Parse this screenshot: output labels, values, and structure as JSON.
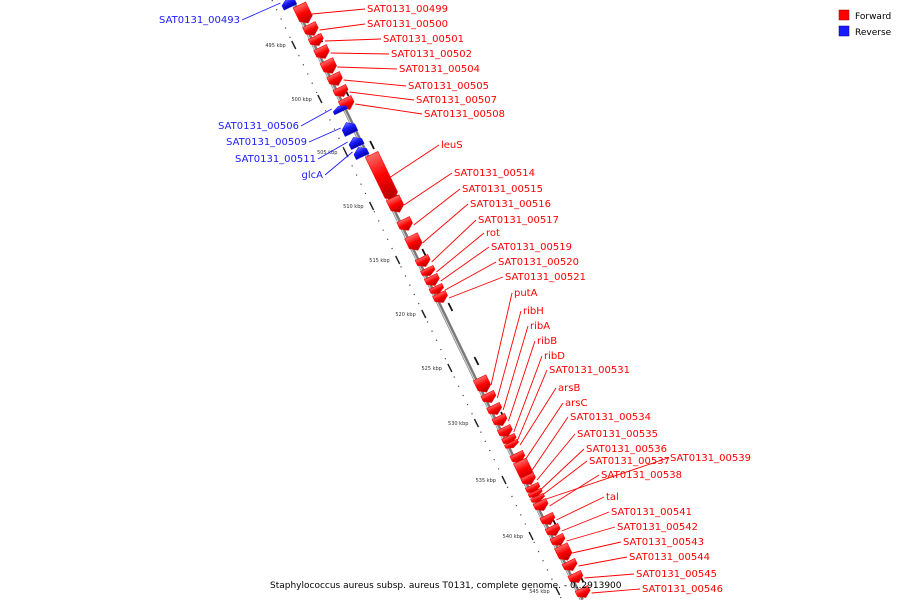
{
  "legend": {
    "forward_label": "Forward",
    "reverse_label": "Reverse",
    "forward_color": "#ff0000",
    "reverse_color": "#1a1aff"
  },
  "caption": "Staphylococcus aureus subsp. aureus T0131, complete genome. - 0..2913900",
  "colors": {
    "backbone": "#777777",
    "forward": "#ff0000",
    "reverse": "#1a1aff"
  },
  "ticks": [
    "495 kbp",
    "500 kbp",
    "505 kbp",
    "510 kbp",
    "515 kbp",
    "520 kbp",
    "525 kbp",
    "530 kbp",
    "535 kbp",
    "540 kbp",
    "545 kbp"
  ],
  "genes": [
    {
      "label": "SAT0131_00493",
      "strand": "reverse"
    },
    {
      "label": "SAT0131_00499",
      "strand": "forward"
    },
    {
      "label": "SAT0131_00500",
      "strand": "forward"
    },
    {
      "label": "SAT0131_00501",
      "strand": "forward"
    },
    {
      "label": "SAT0131_00502",
      "strand": "forward"
    },
    {
      "label": "SAT0131_00504",
      "strand": "forward"
    },
    {
      "label": "SAT0131_00505",
      "strand": "forward"
    },
    {
      "label": "SAT0131_00507",
      "strand": "forward"
    },
    {
      "label": "SAT0131_00508",
      "strand": "forward"
    },
    {
      "label": "SAT0131_00506",
      "strand": "reverse"
    },
    {
      "label": "SAT0131_00509",
      "strand": "reverse"
    },
    {
      "label": "SAT0131_00511",
      "strand": "reverse"
    },
    {
      "label": "glcA",
      "strand": "reverse"
    },
    {
      "label": "leuS",
      "strand": "forward"
    },
    {
      "label": "SAT0131_00514",
      "strand": "forward"
    },
    {
      "label": "SAT0131_00515",
      "strand": "forward"
    },
    {
      "label": "SAT0131_00516",
      "strand": "forward"
    },
    {
      "label": "SAT0131_00517",
      "strand": "forward"
    },
    {
      "label": "rot",
      "strand": "forward"
    },
    {
      "label": "SAT0131_00519",
      "strand": "forward"
    },
    {
      "label": "SAT0131_00520",
      "strand": "forward"
    },
    {
      "label": "SAT0131_00521",
      "strand": "forward"
    },
    {
      "label": "putA",
      "strand": "forward"
    },
    {
      "label": "ribH",
      "strand": "forward"
    },
    {
      "label": "ribA",
      "strand": "forward"
    },
    {
      "label": "ribB",
      "strand": "forward"
    },
    {
      "label": "ribD",
      "strand": "forward"
    },
    {
      "label": "SAT0131_00531",
      "strand": "forward"
    },
    {
      "label": "arsB",
      "strand": "forward"
    },
    {
      "label": "arsC",
      "strand": "forward"
    },
    {
      "label": "SAT0131_00534",
      "strand": "forward"
    },
    {
      "label": "SAT0131_00535",
      "strand": "forward"
    },
    {
      "label": "SAT0131_00536",
      "strand": "forward"
    },
    {
      "label": "SAT0131_00537",
      "strand": "forward"
    },
    {
      "label": "SAT0131_00539",
      "strand": "forward"
    },
    {
      "label": "SAT0131_00538",
      "strand": "forward"
    },
    {
      "label": "tal",
      "strand": "forward"
    },
    {
      "label": "SAT0131_00541",
      "strand": "forward"
    },
    {
      "label": "SAT0131_00542",
      "strand": "forward"
    },
    {
      "label": "SAT0131_00543",
      "strand": "forward"
    },
    {
      "label": "SAT0131_00544",
      "strand": "forward"
    },
    {
      "label": "SAT0131_00545",
      "strand": "forward"
    },
    {
      "label": "SAT0131_00546",
      "strand": "forward"
    }
  ]
}
